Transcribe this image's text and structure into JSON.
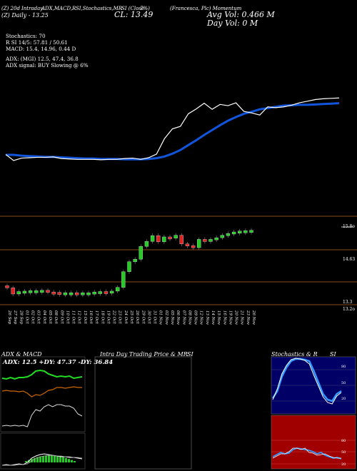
{
  "header": {
    "top_labels": [
      "(Z) 20d",
      "Intraday",
      "ADX,MACD,R",
      "SI,Stochastics,MR",
      "SI (Close",
      "7%)",
      "(Francesca, Plc) Momentum"
    ],
    "top_left_sub": "(Z) Daily - 13.25",
    "close_label": "CL: 13.49",
    "avg_vol": "Avg Vol: 0.466 M",
    "day_vol": "Day Vol: 0 M"
  },
  "indicators": {
    "stochastics": "Stochastics: 70",
    "rsi": "R          SI 14/5: 57.81 / 50.61",
    "macd": "MACD: 15.4, 14.96, 0.44  D",
    "adx": "ADX:                              (MGI) 12.5, 47.4, 36.8",
    "adx_signal": "ADX  signal:                         BUY Slowing @ 6%"
  },
  "price_labels": [
    "15.8o",
    "14.63",
    "13.3",
    "13.2o"
  ],
  "x_dates": [
    "26 Sep",
    "27 Sep",
    "28 Sep",
    "01 Oct",
    "02 Oct",
    "03 Oct",
    "04 Oct",
    "05 Oct",
    "08 Oct",
    "09 Oct",
    "10 Oct",
    "11 Oct",
    "12 Oct",
    "15 Oct",
    "16 Oct",
    "17 Oct",
    "18 Oct",
    "19 Oct",
    "22 Oct",
    "23 Oct",
    "24 Oct",
    "25 Oct",
    "26 Oct",
    "29 Oct",
    "30 Oct",
    "31 Oct",
    "01 Nov",
    "02 Nov",
    "05 Nov",
    "06 Nov",
    "07 Nov",
    "08 Nov",
    "09 Nov",
    "12 Nov",
    "13 Nov",
    "14 Nov",
    "15 Nov",
    "16 Nov",
    "19 Nov",
    "20 Nov",
    "21 Nov",
    "23 Nov",
    "26 Nov"
  ],
  "panels": {
    "adx_title": "ADX  & MACD",
    "adx_values": "ADX: 12.5  +DY: 47.37  -DY: 36.84",
    "intraday_title": "Intra  Day Trading Price  & MR",
    "intraday_suffix": "SI",
    "stoch_title": "Stochastics & R",
    "stoch_suffix": "SI",
    "stoch_axis": [
      "80",
      "50",
      "20"
    ],
    "rsi_axis": [
      "80",
      "50",
      "20"
    ]
  },
  "colors": {
    "up": "#22cc22",
    "down": "#dd2222",
    "ma": "#1155dd",
    "line": "#ffffff",
    "sep": "#8a4a1a",
    "rsi_bg": "#a00000",
    "stoch_bg": "#000066"
  },
  "chart_data": {
    "type": "candlestick",
    "series": [
      {
        "name": "price",
        "values": [
          13.45,
          13.3,
          13.36,
          13.37,
          13.38,
          13.38,
          13.39,
          13.35,
          13.34,
          13.33,
          13.33,
          13.33,
          13.32,
          13.33,
          13.33,
          13.35,
          13.36,
          13.33,
          13.37,
          13.46,
          13.84,
          14.08,
          14.14,
          14.45,
          14.57,
          14.71,
          14.56,
          14.68,
          14.65,
          14.72,
          14.51,
          14.47,
          14.42,
          14.62,
          14.6,
          14.62,
          14.66,
          14.72,
          14.76,
          14.8,
          14.82,
          14.83,
          14.84
        ]
      },
      {
        "name": "ma",
        "values": [
          13.44,
          13.44,
          13.42,
          13.41,
          13.4,
          13.39,
          13.39,
          13.38,
          13.37,
          13.36,
          13.35,
          13.35,
          13.34,
          13.34,
          13.34,
          13.33,
          13.33,
          13.33,
          13.34,
          13.36,
          13.4,
          13.47,
          13.56,
          13.68,
          13.8,
          13.93,
          14.05,
          14.17,
          14.28,
          14.37,
          14.45,
          14.5,
          14.56,
          14.59,
          14.62,
          14.65,
          14.66,
          14.67,
          14.67,
          14.68,
          14.69,
          14.7,
          14.71
        ]
      }
    ]
  }
}
